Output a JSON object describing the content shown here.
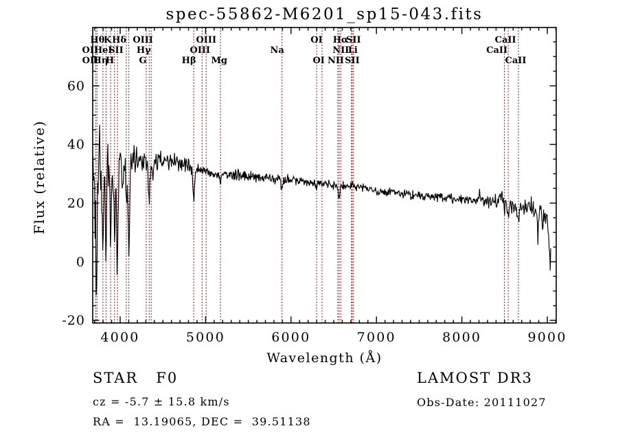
{
  "chart_data": {
    "type": "line",
    "title": "spec-55862-M6201_sp15-043.fits",
    "xlabel": "Wavelength (Å)",
    "ylabel": "Flux (relative)",
    "xlim": [
      3678.5,
      9104
    ],
    "ylim": [
      -20.9,
      79.9
    ],
    "xticks": [
      4000,
      5000,
      6000,
      7000,
      8000,
      9000
    ],
    "yticks": [
      -20,
      0,
      20,
      40,
      60
    ],
    "x_minor_step": 100,
    "y_minor_step": 5,
    "grid": false,
    "legend": "none",
    "spectrum_color": "#000000",
    "frame_color": "#000000",
    "line_marker_color": "#a03232",
    "noise_seed": 20111027,
    "sample_step_angstrom": 6,
    "continuum": [
      [
        3680,
        26
      ],
      [
        3700,
        31
      ],
      [
        3740,
        33
      ],
      [
        3780,
        35
      ],
      [
        3820,
        36
      ],
      [
        3900,
        36.5
      ],
      [
        4000,
        36
      ],
      [
        4100,
        35.5
      ],
      [
        4200,
        35
      ],
      [
        4300,
        34.5
      ],
      [
        4400,
        35
      ],
      [
        4500,
        34.5
      ],
      [
        4600,
        34
      ],
      [
        4700,
        33.5
      ],
      [
        4800,
        33
      ],
      [
        4900,
        31.5
      ],
      [
        5000,
        30.5
      ],
      [
        5100,
        30
      ],
      [
        5200,
        30
      ],
      [
        5300,
        29.8
      ],
      [
        5400,
        29.5
      ],
      [
        5500,
        29.5
      ],
      [
        5600,
        29
      ],
      [
        5700,
        28.6
      ],
      [
        5800,
        28.2
      ],
      [
        5900,
        28
      ],
      [
        6000,
        28
      ],
      [
        6100,
        27.5
      ],
      [
        6200,
        27
      ],
      [
        6300,
        26.6
      ],
      [
        6400,
        26.2
      ],
      [
        6500,
        26
      ],
      [
        6600,
        26
      ],
      [
        6700,
        25.8
      ],
      [
        6800,
        25.3
      ],
      [
        6900,
        24.8
      ],
      [
        7000,
        24.4
      ],
      [
        7100,
        23.8
      ],
      [
        7200,
        23.3
      ],
      [
        7300,
        23.2
      ],
      [
        7400,
        22.8
      ],
      [
        7500,
        22.6
      ],
      [
        7600,
        22.2
      ],
      [
        7700,
        21.9
      ],
      [
        7800,
        21.6
      ],
      [
        7900,
        21.4
      ],
      [
        8000,
        21.2
      ],
      [
        8100,
        20.9
      ],
      [
        8200,
        20.8
      ],
      [
        8300,
        20.5
      ],
      [
        8400,
        20.8
      ],
      [
        8460,
        22
      ],
      [
        8500,
        21.5
      ],
      [
        8540,
        20
      ],
      [
        8580,
        19
      ],
      [
        8650,
        18.5
      ],
      [
        8700,
        18.2
      ],
      [
        8800,
        18
      ],
      [
        8900,
        17.8
      ],
      [
        8990,
        17
      ],
      [
        9005,
        15
      ],
      [
        9015,
        8
      ],
      [
        9030,
        1.5
      ],
      [
        9045,
        1
      ]
    ],
    "noise_sigma": [
      [
        3680,
        14
      ],
      [
        3700,
        13
      ],
      [
        3740,
        12
      ],
      [
        3780,
        9
      ],
      [
        3820,
        7
      ],
      [
        3860,
        6
      ],
      [
        3900,
        5
      ],
      [
        3950,
        4.5
      ],
      [
        4000,
        3.8
      ],
      [
        4100,
        3.2
      ],
      [
        4200,
        2.6
      ],
      [
        4300,
        2.3
      ],
      [
        4400,
        2.1
      ],
      [
        4600,
        1.8
      ],
      [
        4800,
        1.6
      ],
      [
        5000,
        1.4
      ],
      [
        5300,
        1.3
      ],
      [
        5600,
        1.2
      ],
      [
        6000,
        1.1
      ],
      [
        6500,
        1.05
      ],
      [
        7000,
        1
      ],
      [
        7500,
        1
      ],
      [
        7900,
        1.05
      ],
      [
        8200,
        1.2
      ],
      [
        8400,
        1.5
      ],
      [
        8500,
        1.7
      ],
      [
        8600,
        1.5
      ],
      [
        8750,
        1.8
      ],
      [
        8850,
        2.8
      ],
      [
        8950,
        3.8
      ],
      [
        9040,
        3
      ]
    ],
    "absorption_features": [
      [
        3714,
        20,
        9
      ],
      [
        3729,
        22,
        9
      ],
      [
        3798,
        26,
        9
      ],
      [
        3835,
        36,
        9
      ],
      [
        3889,
        30,
        9
      ],
      [
        3933,
        28,
        9
      ],
      [
        3968,
        38,
        9
      ],
      [
        4026,
        12,
        8
      ],
      [
        4072,
        14,
        8
      ],
      [
        4101,
        30,
        10
      ],
      [
        4340,
        13,
        11
      ],
      [
        4383,
        6,
        8
      ],
      [
        4861,
        12,
        10
      ],
      [
        5175,
        2.5,
        10
      ],
      [
        5894,
        3,
        9
      ],
      [
        6300,
        1.5,
        7
      ],
      [
        6563,
        5,
        11
      ],
      [
        8498,
        3.5,
        8
      ],
      [
        8542,
        4.5,
        8
      ],
      [
        8662,
        6,
        9
      ],
      [
        8890,
        9,
        6
      ],
      [
        8940,
        8,
        5
      ]
    ],
    "emission_features": [
      [
        8205,
        3.5,
        5
      ],
      [
        8470,
        2.5,
        5
      ]
    ],
    "spectral_lines": [
      {
        "label": "Hθ",
        "wavelength": 3798,
        "row": 1,
        "dx": -8
      },
      {
        "label": "K",
        "wavelength": 3933,
        "row": 1,
        "dx": -10
      },
      {
        "label": "Hδ",
        "wavelength": 4101,
        "row": 1,
        "dx": -14
      },
      {
        "label": "OIII",
        "wavelength": 4363,
        "row": 1,
        "dx": -12
      },
      {
        "label": "OIII",
        "wavelength": 5007,
        "row": 1,
        "dx": 0
      },
      {
        "label": "OI",
        "wavelength": 6363,
        "row": 1,
        "dx": -8
      },
      {
        "label": "Hα",
        "wavelength": 6563,
        "row": 1,
        "dx": 2
      },
      {
        "label": "SII",
        "wavelength": 6731,
        "row": 1,
        "dx": 0
      },
      {
        "label": "CaII",
        "wavelength": 8542,
        "row": 1,
        "dx": -4
      },
      {
        "label": "OII",
        "wavelength": 3729,
        "row": 2,
        "dx": -10
      },
      {
        "label": "HeI",
        "wavelength": 3889,
        "row": 2,
        "dx": -11
      },
      {
        "label": "SII",
        "wavelength": 4072,
        "row": 2,
        "dx": -15
      },
      {
        "label": "Hγ",
        "wavelength": 4340,
        "row": 2,
        "dx": -8
      },
      {
        "label": "OIII",
        "wavelength": 4959,
        "row": 2,
        "dx": -3
      },
      {
        "label": "Na",
        "wavelength": 5894,
        "row": 2,
        "dx": -7
      },
      {
        "label": "NII",
        "wavelength": 6583,
        "row": 2,
        "dx": 0
      },
      {
        "label": "Li",
        "wavelength": 6707,
        "row": 2,
        "dx": 2
      },
      {
        "label": "CaII",
        "wavelength": 8498,
        "row": 2,
        "dx": -11
      },
      {
        "label": "OII",
        "wavelength": 3714,
        "row": 3,
        "dx": -8
      },
      {
        "label": "Hη",
        "wavelength": 3835,
        "row": 3,
        "dx": -8
      },
      {
        "label": "H",
        "wavelength": 3968,
        "row": 3,
        "dx": -11
      },
      {
        "label": "G",
        "wavelength": 4305,
        "row": 3,
        "dx": -5
      },
      {
        "label": "Hβ",
        "wavelength": 4861,
        "row": 3,
        "dx": -7
      },
      {
        "label": "Mg",
        "wavelength": 5175,
        "row": 3,
        "dx": -2
      },
      {
        "label": "OI",
        "wavelength": 6300,
        "row": 3,
        "dx": 3
      },
      {
        "label": "NII",
        "wavelength": 6548,
        "row": 3,
        "dx": -3
      },
      {
        "label": "SII",
        "wavelength": 6716,
        "row": 3,
        "dx": 0
      },
      {
        "label": "CaII",
        "wavelength": 8662,
        "row": 3,
        "dx": -4
      }
    ]
  },
  "annotations": {
    "class_label": "STAR   F0",
    "cz": "cz = -5.7 ± 15.8 km/s",
    "radec": "RA =  13.19065, DEC =  39.51138",
    "survey": "LAMOST DR3",
    "obs_date": "Obs-Date: 20111027"
  }
}
